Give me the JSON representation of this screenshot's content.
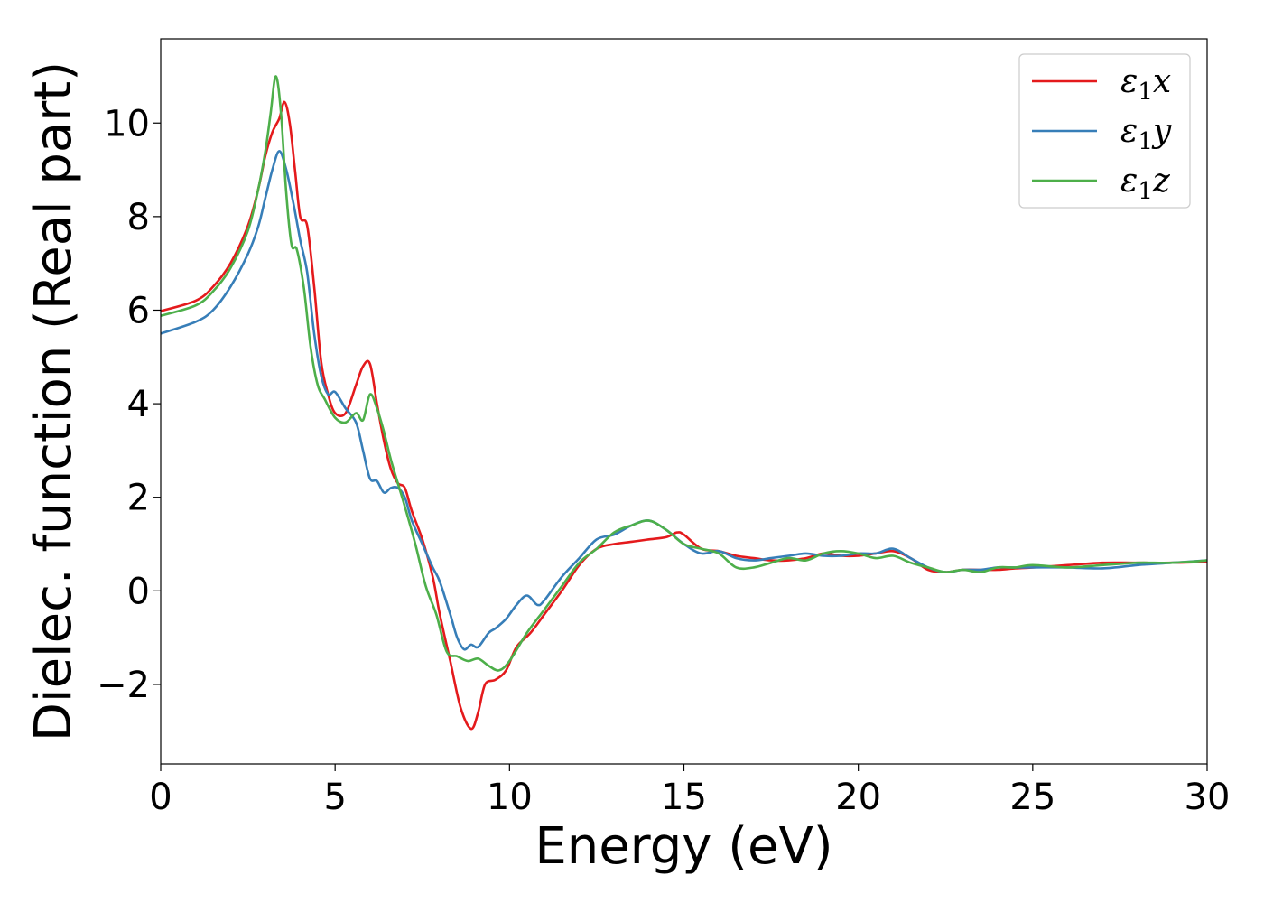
{
  "chart_data": {
    "type": "line",
    "title": "",
    "xlabel": "Energy (eV)",
    "ylabel": "Dielec. function (Real part)",
    "xlim": [
      0,
      30
    ],
    "ylim": [
      -3.7,
      11.8
    ],
    "xticks": [
      0,
      5,
      10,
      15,
      20,
      25,
      30
    ],
    "xtick_labels": [
      "0",
      "5",
      "10",
      "15",
      "20",
      "25",
      "30"
    ],
    "yticks": [
      -2,
      0,
      2,
      4,
      6,
      8,
      10
    ],
    "ytick_labels": [
      "−2",
      "0",
      "2",
      "4",
      "6",
      "8",
      "10"
    ],
    "grid": false,
    "legend_position": "top-right",
    "series": [
      {
        "name": "ε1x",
        "legend_symbol": "ε",
        "legend_sub": "1",
        "legend_var": "x",
        "color": "#e41a1c",
        "x": [
          0,
          1,
          1.5,
          2,
          2.5,
          2.8,
          3.0,
          3.2,
          3.4,
          3.55,
          3.7,
          3.85,
          4.0,
          4.2,
          4.4,
          4.6,
          4.8,
          5.0,
          5.3,
          5.6,
          5.8,
          6.0,
          6.2,
          6.4,
          6.6,
          6.8,
          7.0,
          7.2,
          7.5,
          7.8,
          8.0,
          8.3,
          8.6,
          8.9,
          9.1,
          9.3,
          9.6,
          9.9,
          10.2,
          10.6,
          11.0,
          11.5,
          12.0,
          12.5,
          13.0,
          13.5,
          14.0,
          14.5,
          14.8,
          15.0,
          15.5,
          16.0,
          16.5,
          17.0,
          17.5,
          18.0,
          18.5,
          19.0,
          19.5,
          20.0,
          20.5,
          21.0,
          21.5,
          22.0,
          22.5,
          23.0,
          23.5,
          24.0,
          24.5,
          25.0,
          26.0,
          27.0,
          28.0,
          29.0,
          30.0
        ],
        "y": [
          5.98,
          6.2,
          6.5,
          7.0,
          7.8,
          8.6,
          9.3,
          9.8,
          10.1,
          10.45,
          10.0,
          9.0,
          8.0,
          7.8,
          6.5,
          4.9,
          4.2,
          3.8,
          3.8,
          4.4,
          4.8,
          4.85,
          4.0,
          3.2,
          2.6,
          2.3,
          2.2,
          1.7,
          1.1,
          0.3,
          -0.5,
          -1.5,
          -2.5,
          -2.95,
          -2.6,
          -2.0,
          -1.9,
          -1.7,
          -1.2,
          -0.9,
          -0.5,
          0.0,
          0.55,
          0.9,
          1.0,
          1.05,
          1.1,
          1.15,
          1.25,
          1.2,
          0.9,
          0.85,
          0.75,
          0.7,
          0.65,
          0.65,
          0.7,
          0.8,
          0.75,
          0.75,
          0.8,
          0.85,
          0.7,
          0.45,
          0.4,
          0.45,
          0.45,
          0.45,
          0.48,
          0.5,
          0.55,
          0.6,
          0.6,
          0.6,
          0.62
        ]
      },
      {
        "name": "ε1y",
        "legend_symbol": "ε",
        "legend_sub": "1",
        "legend_var": "y",
        "color": "#377eb8",
        "x": [
          0,
          1,
          1.5,
          2,
          2.5,
          2.8,
          3.0,
          3.2,
          3.4,
          3.6,
          3.8,
          4.0,
          4.2,
          4.4,
          4.6,
          4.8,
          5.0,
          5.3,
          5.6,
          5.8,
          6.0,
          6.2,
          6.4,
          6.6,
          6.8,
          7.0,
          7.2,
          7.5,
          7.8,
          8.0,
          8.3,
          8.5,
          8.7,
          8.9,
          9.1,
          9.4,
          9.6,
          9.9,
          10.2,
          10.5,
          10.8,
          11.0,
          11.5,
          12.0,
          12.5,
          13.0,
          13.5,
          14.0,
          14.5,
          15.0,
          15.5,
          16.0,
          16.5,
          17.0,
          17.5,
          18.0,
          18.5,
          19.0,
          19.5,
          20.0,
          20.5,
          21.0,
          21.5,
          22.0,
          22.5,
          23.0,
          23.5,
          24.0,
          24.5,
          25.0,
          26.0,
          27.0,
          28.0,
          29.0,
          30.0
        ],
        "y": [
          5.5,
          5.75,
          6.0,
          6.5,
          7.2,
          7.8,
          8.4,
          9.0,
          9.4,
          9.0,
          8.3,
          7.5,
          6.8,
          5.5,
          4.6,
          4.2,
          4.25,
          3.9,
          3.6,
          3.0,
          2.4,
          2.35,
          2.1,
          2.2,
          2.2,
          2.0,
          1.5,
          1.0,
          0.5,
          0.2,
          -0.5,
          -1.0,
          -1.25,
          -1.15,
          -1.2,
          -0.9,
          -0.8,
          -0.6,
          -0.3,
          -0.1,
          -0.3,
          -0.2,
          0.3,
          0.7,
          1.1,
          1.2,
          1.4,
          1.5,
          1.3,
          1.0,
          0.8,
          0.85,
          0.7,
          0.65,
          0.7,
          0.75,
          0.8,
          0.75,
          0.75,
          0.8,
          0.8,
          0.9,
          0.7,
          0.5,
          0.4,
          0.45,
          0.45,
          0.5,
          0.5,
          0.5,
          0.5,
          0.48,
          0.55,
          0.6,
          0.65
        ]
      },
      {
        "name": "ε1z",
        "legend_symbol": "ε",
        "legend_sub": "1",
        "legend_var": "z",
        "color": "#4daf4a",
        "x": [
          0,
          1,
          1.5,
          2,
          2.5,
          2.8,
          3.0,
          3.15,
          3.3,
          3.45,
          3.6,
          3.75,
          3.9,
          4.1,
          4.3,
          4.5,
          4.7,
          5.0,
          5.3,
          5.6,
          5.8,
          6.0,
          6.2,
          6.4,
          6.6,
          6.8,
          7.0,
          7.3,
          7.6,
          7.9,
          8.2,
          8.5,
          8.8,
          9.1,
          9.4,
          9.7,
          10.0,
          10.5,
          11.0,
          11.5,
          12.0,
          12.5,
          13.0,
          13.5,
          14.0,
          14.5,
          15.0,
          15.5,
          16.0,
          16.5,
          17.0,
          17.5,
          18.0,
          18.5,
          19.0,
          19.5,
          20.0,
          20.5,
          21.0,
          21.5,
          22.0,
          22.5,
          23.0,
          23.5,
          24.0,
          24.5,
          25.0,
          26.0,
          27.0,
          28.0,
          29.0,
          30.0
        ],
        "y": [
          5.88,
          6.1,
          6.4,
          6.9,
          7.7,
          8.6,
          9.4,
          10.2,
          11.0,
          10.2,
          8.5,
          7.4,
          7.3,
          6.5,
          5.2,
          4.4,
          4.1,
          3.7,
          3.6,
          3.8,
          3.65,
          4.2,
          3.9,
          3.4,
          2.8,
          2.3,
          1.8,
          1.0,
          0.1,
          -0.5,
          -1.3,
          -1.4,
          -1.5,
          -1.45,
          -1.6,
          -1.7,
          -1.5,
          -0.9,
          -0.4,
          0.1,
          0.6,
          0.9,
          1.25,
          1.4,
          1.5,
          1.3,
          1.0,
          0.9,
          0.8,
          0.5,
          0.5,
          0.6,
          0.7,
          0.65,
          0.8,
          0.85,
          0.8,
          0.7,
          0.75,
          0.6,
          0.5,
          0.4,
          0.45,
          0.4,
          0.5,
          0.5,
          0.55,
          0.5,
          0.55,
          0.6,
          0.6,
          0.65
        ]
      }
    ]
  }
}
